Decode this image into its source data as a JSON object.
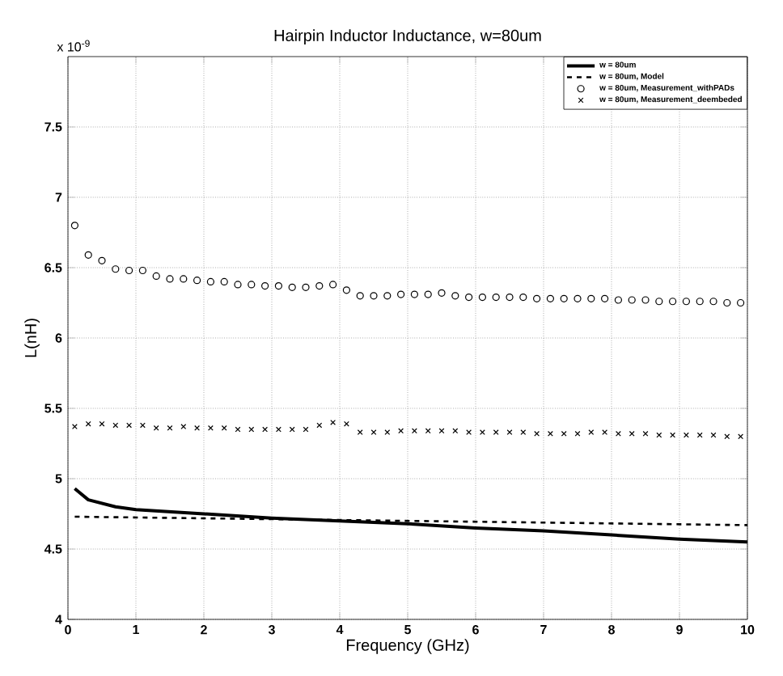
{
  "chart_data": {
    "type": "line",
    "title": "Hairpin Inductor Inductance, w=80um",
    "xlabel": "Frequency (GHz)",
    "ylabel": "L(nH)",
    "annotations": [
      "x 10$^{-9}$"
    ],
    "xlim": [
      0,
      10
    ],
    "xticks": [
      0,
      1,
      2,
      3,
      4,
      5,
      6,
      7,
      8,
      9,
      10
    ],
    "ylim": [
      4,
      8
    ],
    "yticks": [
      4,
      4.5,
      5,
      5.5,
      6,
      6.5,
      7,
      7.5
    ],
    "grid": true,
    "legend": "top right",
    "series": [
      {
        "name": "w = 80um",
        "color": "#000000",
        "line_style": "solid",
        "marker": "none",
        "x": [
          0.1,
          0.3,
          0.7,
          1,
          2,
          3,
          4,
          5,
          6,
          7,
          8,
          9,
          10
        ],
        "values": [
          4.93,
          4.85,
          4.8,
          4.78,
          4.75,
          4.72,
          4.7,
          4.68,
          4.65,
          4.63,
          4.6,
          4.57,
          4.55
        ]
      },
      {
        "name": "w = 80um, Model",
        "color": "#000000",
        "line_style": "dashed",
        "marker": "none",
        "x": [
          0.1,
          10
        ],
        "values": [
          4.73,
          4.67
        ]
      },
      {
        "name": "w = 80um, Measurement_withPADs",
        "type": "scatter",
        "color": "#000000",
        "marker": "circle",
        "x": [
          0.1,
          0.3,
          0.5,
          0.7,
          0.9,
          1.1,
          1.3,
          1.5,
          1.7,
          1.9,
          2.1,
          2.3,
          2.5,
          2.7,
          2.9,
          3.1,
          3.3,
          3.5,
          3.7,
          3.9,
          4.1,
          4.3,
          4.5,
          4.7,
          4.9,
          5.1,
          5.3,
          5.5,
          5.7,
          5.9,
          6.1,
          6.3,
          6.5,
          6.7,
          6.9,
          7.1,
          7.3,
          7.5,
          7.7,
          7.9,
          8.1,
          8.3,
          8.5,
          8.7,
          8.9,
          9.1,
          9.3,
          9.5,
          9.7,
          9.9
        ],
        "values": [
          6.8,
          6.59,
          6.55,
          6.49,
          6.48,
          6.48,
          6.44,
          6.42,
          6.42,
          6.41,
          6.4,
          6.4,
          6.38,
          6.38,
          6.37,
          6.37,
          6.36,
          6.36,
          6.37,
          6.38,
          6.34,
          6.3,
          6.3,
          6.3,
          6.31,
          6.31,
          6.31,
          6.32,
          6.3,
          6.29,
          6.29,
          6.29,
          6.29,
          6.29,
          6.28,
          6.28,
          6.28,
          6.28,
          6.28,
          6.28,
          6.27,
          6.27,
          6.27,
          6.26,
          6.26,
          6.26,
          6.26,
          6.26,
          6.25,
          6.25
        ]
      },
      {
        "name": "w = 80um, Measurement_deembeded",
        "type": "scatter",
        "color": "#000000",
        "marker": "cross",
        "x": [
          0.1,
          0.3,
          0.5,
          0.7,
          0.9,
          1.1,
          1.3,
          1.5,
          1.7,
          1.9,
          2.1,
          2.3,
          2.5,
          2.7,
          2.9,
          3.1,
          3.3,
          3.5,
          3.7,
          3.9,
          4.1,
          4.3,
          4.5,
          4.7,
          4.9,
          5.1,
          5.3,
          5.5,
          5.7,
          5.9,
          6.1,
          6.3,
          6.5,
          6.7,
          6.9,
          7.1,
          7.3,
          7.5,
          7.7,
          7.9,
          8.1,
          8.3,
          8.5,
          8.7,
          8.9,
          9.1,
          9.3,
          9.5,
          9.7,
          9.9
        ],
        "values": [
          5.37,
          5.39,
          5.39,
          5.38,
          5.38,
          5.38,
          5.36,
          5.36,
          5.37,
          5.36,
          5.36,
          5.36,
          5.35,
          5.35,
          5.35,
          5.35,
          5.35,
          5.35,
          5.38,
          5.4,
          5.39,
          5.33,
          5.33,
          5.33,
          5.34,
          5.34,
          5.34,
          5.34,
          5.34,
          5.33,
          5.33,
          5.33,
          5.33,
          5.33,
          5.32,
          5.32,
          5.32,
          5.32,
          5.33,
          5.33,
          5.32,
          5.32,
          5.32,
          5.31,
          5.31,
          5.31,
          5.31,
          5.31,
          5.3,
          5.3
        ]
      }
    ]
  }
}
